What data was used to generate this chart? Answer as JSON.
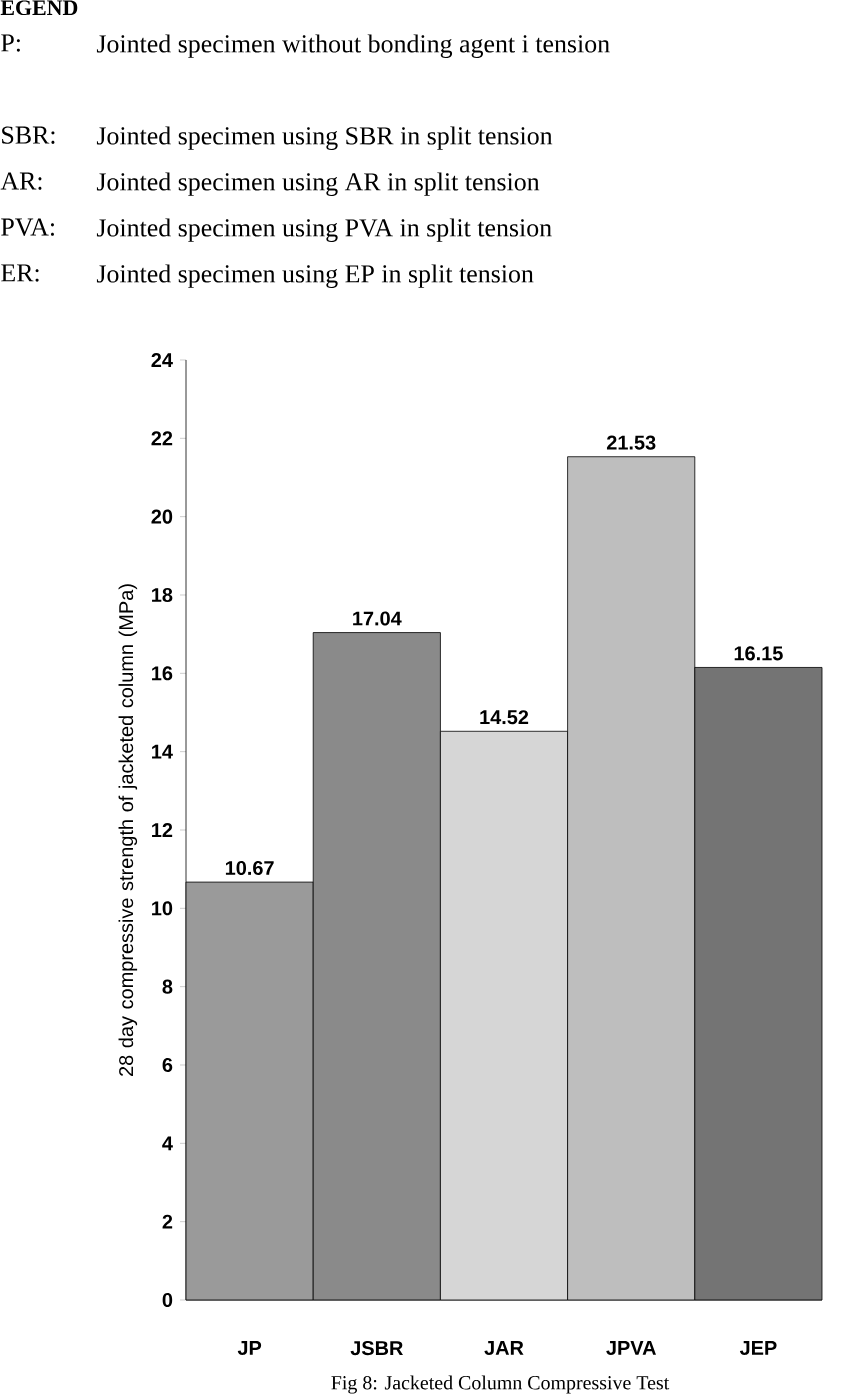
{
  "chart_data": {
    "type": "bar",
    "categories": [
      "JP",
      "JSBR",
      "JAR",
      "JPVA",
      "JEP"
    ],
    "values": [
      10.67,
      17.04,
      14.52,
      21.53,
      16.15
    ],
    "colors": [
      "#9a9a9a",
      "#8a8a8a",
      "#d6d6d6",
      "#bebebe",
      "#747474"
    ],
    "ylabel": "28 day compressive strength of jacketed column (MPa)",
    "ylim": [
      0,
      24
    ],
    "yticks": [
      0,
      2,
      4,
      6,
      8,
      10,
      12,
      14,
      16,
      18,
      20,
      22,
      24
    ],
    "data_labels": true,
    "grid": false,
    "annotations": [
      "EGEND",
      "P:",
      "Jointed specimen without bonding agent i tension",
      "SBR:",
      "Jointed specimen using SBR in split tension",
      "AR:",
      "Jointed specimen using AR in split tension",
      "PVA:",
      "Jointed specimen using PVA in split tension",
      "ER:",
      "Jointed specimen using EP in split tension",
      "Fig 8: Jacketed Column Compressive Test"
    ]
  }
}
